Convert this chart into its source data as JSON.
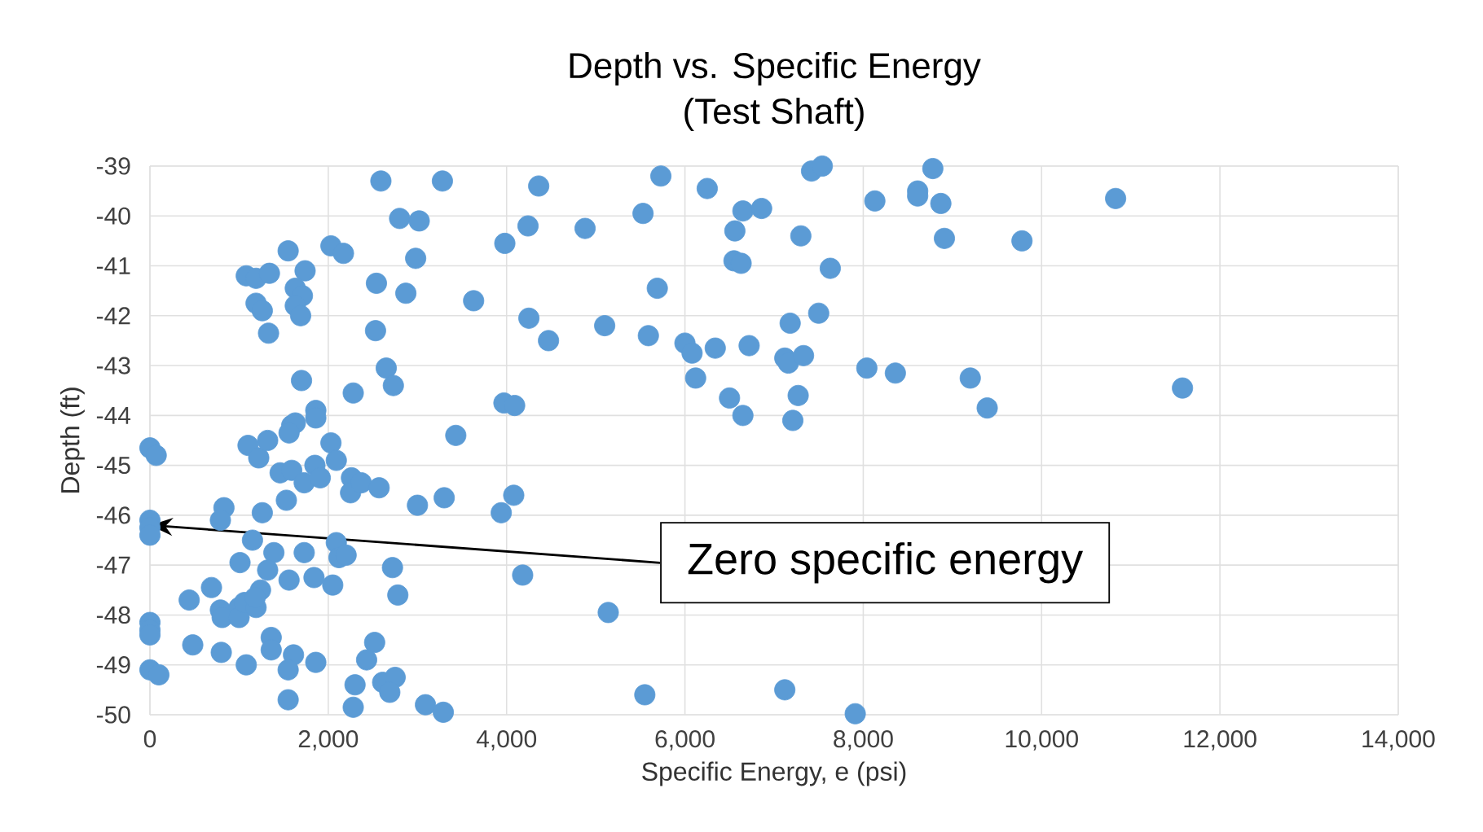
{
  "chart_data": {
    "type": "scatter",
    "title": "Depth vs. Specific Energy",
    "subtitle": "(Test Shaft)",
    "xlabel": "Specific Energy, e (psi)",
    "ylabel": "Depth (ft)",
    "xlim": [
      0,
      14000
    ],
    "ylim": [
      -50,
      -39
    ],
    "xticks": [
      0,
      {
        "value": 2000,
        "label": "2,000"
      },
      {
        "value": 4000,
        "label": "4,000"
      },
      {
        "value": 6000,
        "label": "6,000"
      },
      {
        "value": 8000,
        "label": "8,000"
      },
      {
        "value": 10000,
        "label": "10,000"
      },
      {
        "value": 12000,
        "label": "12,000"
      },
      {
        "value": 14000,
        "label": "14,000"
      }
    ],
    "yticks": [
      -39,
      -40,
      -41,
      -42,
      -43,
      -44,
      -45,
      -46,
      -47,
      -48,
      -49,
      -50
    ],
    "grid": true,
    "marker": "circle",
    "annotations": [
      {
        "text": "Zero specific energy",
        "x": 0,
        "y": -46.2
      }
    ],
    "series": [
      {
        "color": "#5b9bd5",
        "x": [
          0,
          70,
          0,
          0,
          0,
          0,
          0,
          0,
          0,
          100,
          2590,
          3280,
          4360,
          2800,
          3020,
          4240,
          3980,
          1550,
          2030,
          2170,
          2980,
          1740,
          1080,
          1190,
          1340,
          2540,
          2870,
          3630,
          1630,
          1710,
          1630,
          1190,
          1260,
          1690,
          1330,
          2530,
          4250,
          4470,
          1700,
          2280,
          2650,
          2730,
          3970,
          4090,
          1860,
          1860,
          3430,
          1590,
          1630,
          1100,
          1220,
          1320,
          1560,
          2030,
          2090,
          1460,
          1590,
          1730,
          1850,
          1910,
          2260,
          2250,
          2370,
          2570,
          3000,
          3300,
          4080,
          3940,
          1530,
          830,
          790,
          1260,
          1150,
          1390,
          1730,
          2090,
          2120,
          2200,
          2720,
          2780,
          4180,
          1010,
          1320,
          1560,
          1840,
          2050,
          690,
          440,
          790,
          810,
          1000,
          1000,
          1060,
          1190,
          1240,
          1180,
          480,
          800,
          1080,
          1360,
          1360,
          1610,
          1550,
          1860,
          1550,
          2520,
          2430,
          2300,
          2280,
          2610,
          2750,
          2690,
          3090,
          3290,
          5730,
          6250,
          7420,
          7540,
          8780,
          5530,
          4880,
          6650,
          6860,
          6560,
          7300,
          8130,
          8610,
          8610,
          8870,
          8910,
          9780,
          6550,
          6630,
          7630,
          5690,
          5100,
          5590,
          6000,
          6080,
          6340,
          6720,
          7180,
          7500,
          7120,
          7160,
          7330,
          6120,
          6500,
          6650,
          7270,
          7210,
          8040,
          8360,
          9200,
          9390,
          10830,
          11580,
          5140,
          5550,
          7120,
          7910
        ],
        "values": [
          -44.65,
          -44.8,
          -46.1,
          -46.25,
          -46.4,
          -48.15,
          -48.3,
          -48.4,
          -49.1,
          -49.2,
          -39.3,
          -39.3,
          -39.4,
          -40.05,
          -40.1,
          -40.2,
          -40.55,
          -40.7,
          -40.6,
          -40.75,
          -40.85,
          -41.1,
          -41.2,
          -41.25,
          -41.15,
          -41.35,
          -41.55,
          -41.7,
          -41.45,
          -41.6,
          -41.8,
          -41.75,
          -41.9,
          -42.0,
          -42.35,
          -42.3,
          -42.05,
          -42.5,
          -43.3,
          -43.55,
          -43.05,
          -43.4,
          -43.75,
          -43.8,
          -43.9,
          -44.05,
          -44.4,
          -44.2,
          -44.15,
          -44.6,
          -44.85,
          -44.5,
          -44.35,
          -44.55,
          -44.9,
          -45.15,
          -45.1,
          -45.35,
          -45.0,
          -45.25,
          -45.25,
          -45.55,
          -45.35,
          -45.45,
          -45.8,
          -45.65,
          -45.6,
          -45.95,
          -45.7,
          -45.85,
          -46.1,
          -45.95,
          -46.5,
          -46.75,
          -46.75,
          -46.55,
          -46.85,
          -46.8,
          -47.05,
          -47.6,
          -47.2,
          -46.95,
          -47.1,
          -47.3,
          -47.25,
          -47.4,
          -47.45,
          -47.7,
          -47.9,
          -48.05,
          -47.85,
          -48.05,
          -47.75,
          -47.85,
          -47.5,
          -47.65,
          -48.6,
          -48.75,
          -49.0,
          -48.45,
          -48.7,
          -48.8,
          -49.1,
          -48.95,
          -49.7,
          -48.55,
          -48.9,
          -49.4,
          -49.85,
          -49.35,
          -49.25,
          -49.55,
          -49.8,
          -49.95,
          -39.2,
          -39.45,
          -39.1,
          -39.0,
          -39.05,
          -39.95,
          -40.25,
          -39.9,
          -39.85,
          -40.3,
          -40.4,
          -39.7,
          -39.5,
          -39.6,
          -39.75,
          -40.45,
          -40.5,
          -40.9,
          -40.95,
          -41.05,
          -41.45,
          -42.2,
          -42.4,
          -42.55,
          -42.75,
          -42.65,
          -42.6,
          -42.15,
          -41.95,
          -42.85,
          -42.95,
          -42.8,
          -43.25,
          -43.65,
          -44.0,
          -43.6,
          -44.1,
          -43.05,
          -43.15,
          -43.25,
          -43.85,
          -39.65,
          -43.45,
          -47.95,
          -49.6,
          -49.5,
          -49.98
        ]
      }
    ]
  }
}
